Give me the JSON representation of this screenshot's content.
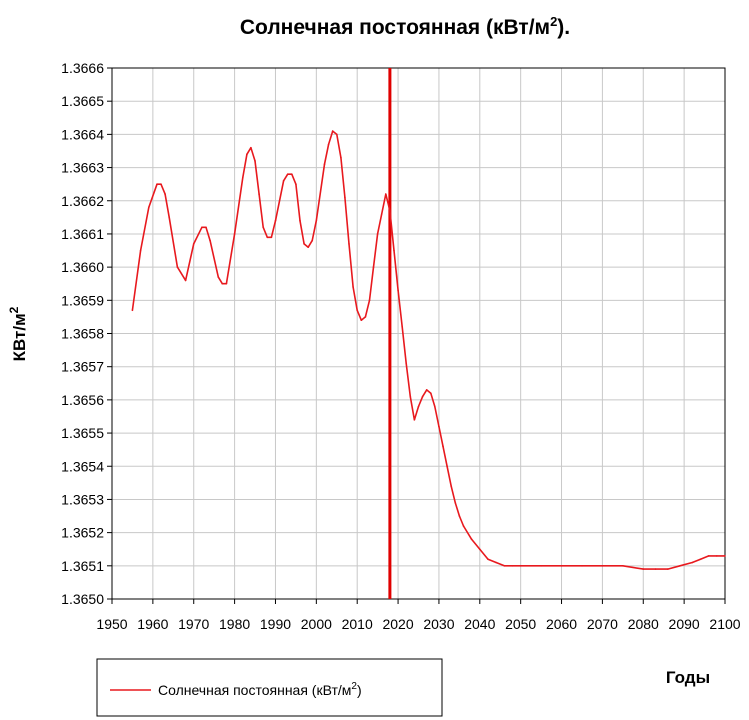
{
  "chart_data": {
    "type": "line",
    "title": "Солнечная постоянная (кВт/м",
    "title_sup": "2",
    "title_end": ").",
    "xlabel": "Годы",
    "ylabel": "КВт/м",
    "ylabel_sup": "2",
    "xlim": [
      1950,
      2100
    ],
    "ylim": [
      1.365,
      1.3666
    ],
    "x_ticks": [
      "1950",
      "1960",
      "1970",
      "1980",
      "1990",
      "2000",
      "2010",
      "2020",
      "2030",
      "2040",
      "2050",
      "2060",
      "2070",
      "2080",
      "2090",
      "2100"
    ],
    "y_ticks": [
      "1.3650",
      "1.3651",
      "1.3652",
      "1.3653",
      "1.3654",
      "1.3655",
      "1.3656",
      "1.3657",
      "1.3658",
      "1.3659",
      "1.3660",
      "1.3661",
      "1.3662",
      "1.3663",
      "1.3664",
      "1.3665",
      "1.3666"
    ],
    "grid": true,
    "legend_position": "bottom-left",
    "marker_line": {
      "x": 2018,
      "color": "#e00000"
    },
    "series": [
      {
        "name": "Солнечная постоянная (кВт/м",
        "name_sup": "2",
        "name_end": ")",
        "color": "#e8191e",
        "x": [
          1955,
          1957,
          1959,
          1961,
          1962,
          1963,
          1964,
          1966,
          1968,
          1970,
          1972,
          1973,
          1974,
          1976,
          1977,
          1978,
          1980,
          1982,
          1983,
          1984,
          1985,
          1986,
          1987,
          1988,
          1989,
          1990,
          1992,
          1993,
          1994,
          1995,
          1996,
          1997,
          1998,
          1999,
          2000,
          2002,
          2003,
          2004,
          2005,
          2006,
          2007,
          2008,
          2009,
          2010,
          2011,
          2012,
          2013,
          2014,
          2015,
          2016,
          2017,
          2018,
          2019,
          2020,
          2021,
          2022,
          2023,
          2024,
          2025,
          2026,
          2027,
          2028,
          2029,
          2030,
          2031,
          2032,
          2033,
          2034,
          2035,
          2036,
          2038,
          2040,
          2042,
          2044,
          2046,
          2048,
          2050,
          2055,
          2060,
          2065,
          2070,
          2075,
          2080,
          2083,
          2086,
          2089,
          2092,
          2094,
          2096,
          2098,
          2100
        ],
        "y": [
          1.36587,
          1.36605,
          1.36618,
          1.36625,
          1.36625,
          1.36622,
          1.36615,
          1.366,
          1.36596,
          1.36607,
          1.36612,
          1.36612,
          1.36608,
          1.36597,
          1.36595,
          1.36595,
          1.3661,
          1.36627,
          1.36634,
          1.36636,
          1.36632,
          1.36622,
          1.36612,
          1.36609,
          1.36609,
          1.36614,
          1.36626,
          1.36628,
          1.36628,
          1.36625,
          1.36614,
          1.36607,
          1.36606,
          1.36608,
          1.36614,
          1.36631,
          1.36637,
          1.36641,
          1.3664,
          1.36633,
          1.36621,
          1.36607,
          1.36594,
          1.36587,
          1.36584,
          1.36585,
          1.3659,
          1.366,
          1.3661,
          1.36616,
          1.36622,
          1.36617,
          1.36605,
          1.36593,
          1.36582,
          1.36571,
          1.36561,
          1.36554,
          1.36558,
          1.36561,
          1.36563,
          1.36562,
          1.36558,
          1.36552,
          1.36546,
          1.3654,
          1.36534,
          1.36529,
          1.36525,
          1.36522,
          1.36518,
          1.36515,
          1.36512,
          1.36511,
          1.3651,
          1.3651,
          1.3651,
          1.3651,
          1.3651,
          1.3651,
          1.3651,
          1.3651,
          1.36509,
          1.36509,
          1.36509,
          1.3651,
          1.36511,
          1.36512,
          1.36513,
          1.36513,
          1.36513
        ]
      }
    ]
  }
}
